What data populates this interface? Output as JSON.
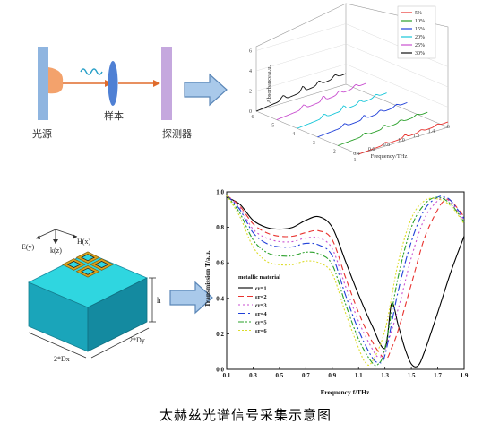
{
  "setup": {
    "source_label": "光源",
    "sample_label": "样本",
    "detector_label": "探测器"
  },
  "caption": "太赫兹光谱信号采集示意图",
  "spectrum3d": {
    "zaxis_label": "Absorbance/a.u.",
    "xaxis_label": "Frequency/THz",
    "z_ticks": [
      "0",
      "2",
      "4",
      "6"
    ],
    "x_ticks": [
      "0.4",
      "0.6",
      "0.8",
      "1.0",
      "1.2",
      "1.4",
      "1.6"
    ],
    "depth_ticks": [
      "1",
      "2",
      "3",
      "4",
      "5",
      "6"
    ],
    "legend": [
      {
        "label": "5%",
        "color": "#e8332f"
      },
      {
        "label": "10%",
        "color": "#2aa02a"
      },
      {
        "label": "15%",
        "color": "#1f3fd8"
      },
      {
        "label": "20%",
        "color": "#16c6d8"
      },
      {
        "label": "25%",
        "color": "#c94fd0"
      },
      {
        "label": "30%",
        "color": "#111111"
      }
    ]
  },
  "structure": {
    "axis_e": "E(y)",
    "axis_k": "k(z)",
    "axis_h": "H(x)",
    "height_label": "h",
    "dx_label": "2*Dx",
    "dy_label": "2*Dy"
  },
  "chart_data": {
    "type": "line",
    "title": "",
    "xlabel": "Frequency f/THz",
    "ylabel": "Transmission T/a.u.",
    "xlim": [
      0.1,
      1.9
    ],
    "ylim": [
      0.0,
      1.0
    ],
    "x_ticks": [
      "0.1",
      "0.3",
      "0.5",
      "0.7",
      "0.9",
      "1.1",
      "1.3",
      "1.5",
      "1.7",
      "1.9"
    ],
    "y_ticks": [
      "0.0",
      "0.2",
      "0.4",
      "0.6",
      "0.8",
      "1.0"
    ],
    "legend_title": "metallic material",
    "series": [
      {
        "name": "εr=1",
        "color": "#000000",
        "dash": "",
        "x": [
          0.1,
          0.2,
          0.3,
          0.4,
          0.5,
          0.6,
          0.7,
          0.8,
          0.9,
          1.0,
          1.1,
          1.2,
          1.3,
          1.35,
          1.4,
          1.45,
          1.5,
          1.55,
          1.6,
          1.7,
          1.8,
          1.9
        ],
        "values": [
          0.97,
          0.93,
          0.84,
          0.8,
          0.79,
          0.8,
          0.84,
          0.86,
          0.8,
          0.61,
          0.42,
          0.25,
          0.12,
          0.37,
          0.25,
          0.12,
          0.03,
          0.02,
          0.1,
          0.32,
          0.55,
          0.75
        ]
      },
      {
        "name": "εr=2",
        "color": "#e8332f",
        "dash": "6,4",
        "x": [
          0.1,
          0.2,
          0.3,
          0.4,
          0.5,
          0.6,
          0.7,
          0.8,
          0.9,
          1.0,
          1.1,
          1.2,
          1.3,
          1.35,
          1.4,
          1.5,
          1.6,
          1.7,
          1.75,
          1.8,
          1.9
        ],
        "values": [
          0.98,
          0.92,
          0.82,
          0.77,
          0.75,
          0.75,
          0.77,
          0.78,
          0.73,
          0.52,
          0.32,
          0.16,
          0.06,
          0.12,
          0.22,
          0.48,
          0.74,
          0.9,
          0.95,
          0.95,
          0.86
        ]
      },
      {
        "name": "εr=3",
        "color": "#c94fd0",
        "dash": "2,3",
        "x": [
          0.1,
          0.2,
          0.3,
          0.4,
          0.5,
          0.6,
          0.7,
          0.8,
          0.9,
          1.0,
          1.1,
          1.2,
          1.25,
          1.3,
          1.4,
          1.5,
          1.6,
          1.7,
          1.75,
          1.8,
          1.9
        ],
        "values": [
          0.98,
          0.91,
          0.79,
          0.74,
          0.72,
          0.72,
          0.74,
          0.74,
          0.68,
          0.47,
          0.27,
          0.12,
          0.07,
          0.11,
          0.34,
          0.63,
          0.85,
          0.95,
          0.96,
          0.94,
          0.84
        ]
      },
      {
        "name": "εr=4",
        "color": "#1f3fd8",
        "dash": "8,3,2,3",
        "x": [
          0.1,
          0.2,
          0.3,
          0.4,
          0.5,
          0.6,
          0.7,
          0.8,
          0.9,
          1.0,
          1.1,
          1.2,
          1.25,
          1.3,
          1.4,
          1.5,
          1.6,
          1.7,
          1.75,
          1.8,
          1.9
        ],
        "values": [
          0.98,
          0.9,
          0.77,
          0.71,
          0.69,
          0.69,
          0.71,
          0.7,
          0.64,
          0.42,
          0.22,
          0.07,
          0.04,
          0.08,
          0.44,
          0.72,
          0.9,
          0.97,
          0.97,
          0.95,
          0.85
        ]
      },
      {
        "name": "εr=5",
        "color": "#2aa02a",
        "dash": "6,2,2,2,2,2",
        "x": [
          0.1,
          0.2,
          0.3,
          0.4,
          0.5,
          0.6,
          0.7,
          0.8,
          0.9,
          1.0,
          1.1,
          1.2,
          1.25,
          1.3,
          1.4,
          1.5,
          1.6,
          1.7,
          1.8,
          1.9
        ],
        "values": [
          0.98,
          0.88,
          0.73,
          0.66,
          0.64,
          0.64,
          0.66,
          0.65,
          0.59,
          0.37,
          0.17,
          0.04,
          0.03,
          0.12,
          0.52,
          0.8,
          0.93,
          0.97,
          0.93,
          0.83
        ]
      },
      {
        "name": "εr=6",
        "color": "#dcdc2a",
        "dash": "2,2",
        "x": [
          0.1,
          0.2,
          0.3,
          0.4,
          0.5,
          0.6,
          0.7,
          0.8,
          0.9,
          1.0,
          1.1,
          1.15,
          1.2,
          1.3,
          1.4,
          1.5,
          1.6,
          1.7,
          1.8,
          1.9
        ],
        "values": [
          0.98,
          0.86,
          0.69,
          0.61,
          0.59,
          0.59,
          0.61,
          0.6,
          0.54,
          0.32,
          0.12,
          0.04,
          0.04,
          0.22,
          0.6,
          0.85,
          0.95,
          0.96,
          0.92,
          0.82
        ]
      }
    ]
  }
}
